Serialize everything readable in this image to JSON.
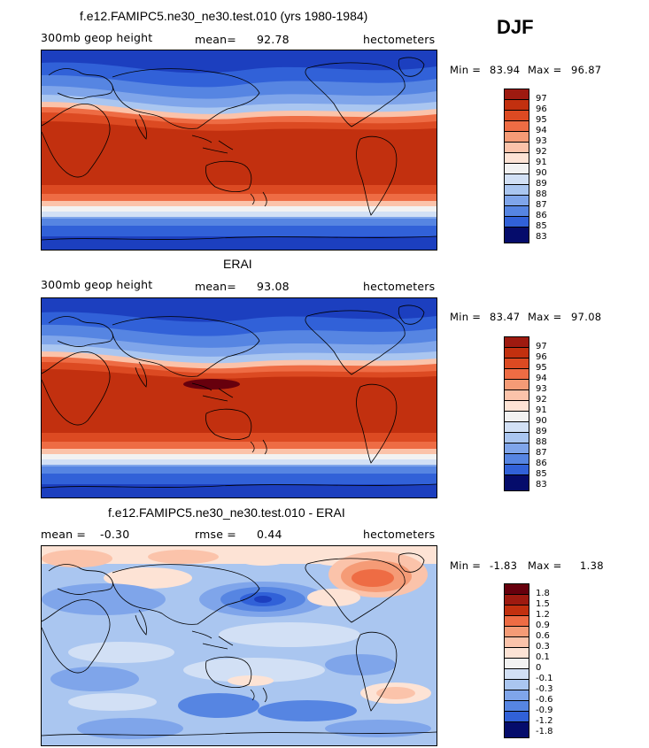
{
  "season": "DJF",
  "panels": [
    {
      "title": "f.e12.FAMIPC5.ne30_ne30.test.010 (yrs 1980-1984)",
      "left_label": "300mb geop height",
      "center_label": "mean=",
      "center_value": "92.78",
      "right_label": "hectometers",
      "min_label": "Min =",
      "min_value": "83.94",
      "max_label": "Max =",
      "max_value": "96.87",
      "colorbar_ticks": [
        "97",
        "96",
        "95",
        "94",
        "93",
        "92",
        "91",
        "90",
        "89",
        "88",
        "87",
        "86",
        "85",
        "84",
        "83"
      ]
    },
    {
      "title": "ERAI",
      "left_label": "300mb geop height",
      "center_label": "mean=",
      "center_value": "93.08",
      "right_label": "hectometers",
      "min_label": "Min =",
      "min_value": "83.47",
      "max_label": "Max =",
      "max_value": "97.08",
      "colorbar_ticks": [
        "97",
        "96",
        "95",
        "94",
        "93",
        "92",
        "91",
        "90",
        "89",
        "88",
        "87",
        "86",
        "85",
        "84",
        "83"
      ]
    },
    {
      "title": "f.e12.FAMIPC5.ne30_ne30.test.010 - ERAI",
      "left_label": "mean =",
      "left_value": "-0.30",
      "center_label": "rmse =",
      "center_value": "0.44",
      "right_label": "hectometers",
      "min_label": "Min =",
      "min_value": "-1.83",
      "max_label": "Max =",
      "max_value": "1.38",
      "colorbar_ticks": [
        "1.8",
        "1.5",
        "1.2",
        "0.9",
        "0.6",
        "0.3",
        "0.1",
        "0",
        "-0.1",
        "-0.3",
        "-0.6",
        "-0.9",
        "-1.2",
        "-1.5",
        "-1.8"
      ]
    }
  ],
  "colors": {
    "diverging": [
      "#67000d",
      "#9e1a10",
      "#c2300f",
      "#dc4a22",
      "#ee6c44",
      "#f59b76",
      "#fbc3aa",
      "#fde3d5",
      "#f2f2f2",
      "#d2e0f5",
      "#aac6f0",
      "#7fa5ea",
      "#5685e2",
      "#3161d8",
      "#1c3fbf",
      "#0f2196",
      "#050c6b"
    ],
    "map_border": "#000000"
  }
}
